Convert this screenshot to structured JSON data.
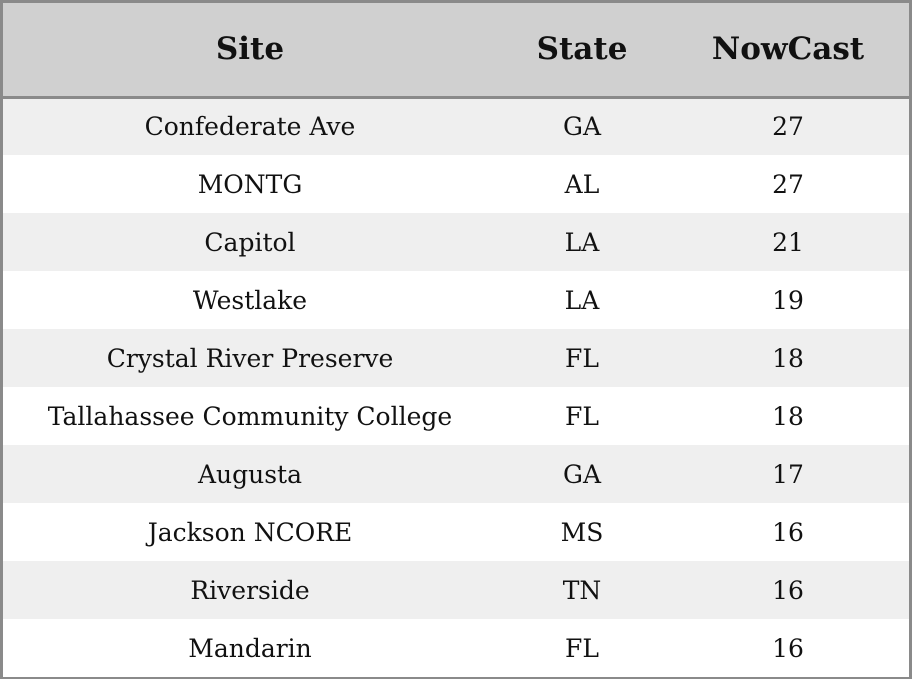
{
  "chart_data": {
    "type": "table",
    "columns": [
      "Site",
      "State",
      "NowCast"
    ],
    "rows": [
      [
        "Confederate Ave",
        "GA",
        "27"
      ],
      [
        "MONTG",
        "AL",
        "27"
      ],
      [
        "Capitol",
        "LA",
        "21"
      ],
      [
        "Westlake",
        "LA",
        "19"
      ],
      [
        "Crystal River Preserve",
        "FL",
        "18"
      ],
      [
        "Tallahassee Community College",
        "FL",
        "18"
      ],
      [
        "Augusta",
        "GA",
        "17"
      ],
      [
        "Jackson NCORE",
        "MS",
        "16"
      ],
      [
        "Riverside",
        "TN",
        "16"
      ],
      [
        "Mandarin",
        "FL",
        "16"
      ]
    ]
  },
  "colors": {
    "header_bg": "#d0d0d0",
    "row_alt_bg": "#efefef",
    "row_bg": "#ffffff",
    "border": "#8a8a8a",
    "text": "#111111"
  }
}
